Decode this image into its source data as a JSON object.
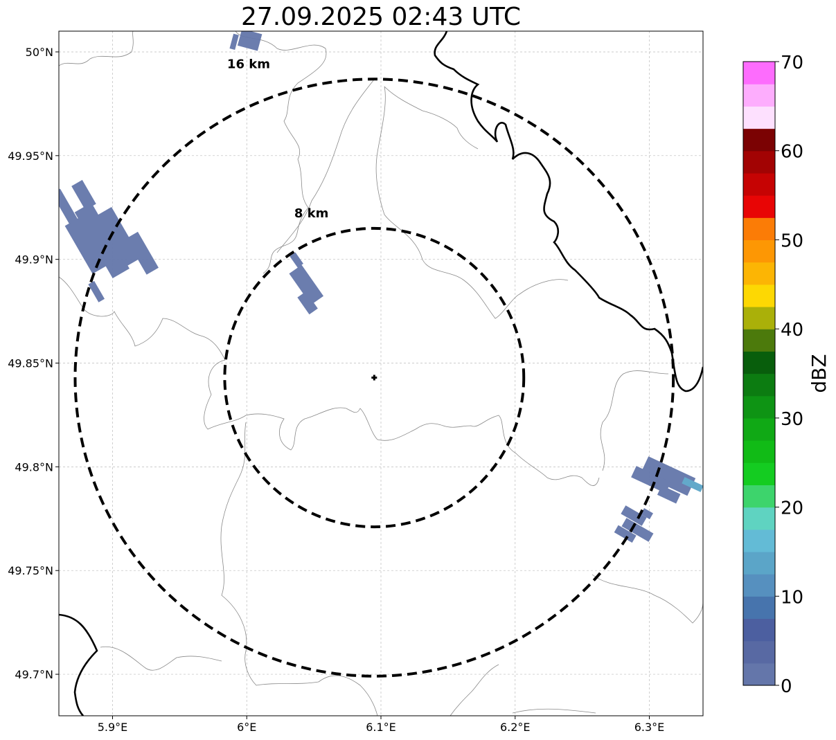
{
  "title": "27.09.2025 02:43 UTC",
  "map": {
    "lon_ticks": [
      {
        "value": 5.9,
        "label": "5.9°E"
      },
      {
        "value": 6.0,
        "label": "6°E"
      },
      {
        "value": 6.1,
        "label": "6.1°E"
      },
      {
        "value": 6.2,
        "label": "6.2°E"
      },
      {
        "value": 6.3,
        "label": "6.3°E"
      }
    ],
    "lat_ticks": [
      {
        "value": 50.0,
        "label": "50°N"
      },
      {
        "value": 49.95,
        "label": "49.95°N"
      },
      {
        "value": 49.9,
        "label": "49.9°N"
      },
      {
        "value": 49.85,
        "label": "49.85°N"
      },
      {
        "value": 49.8,
        "label": "49.8°N"
      },
      {
        "value": 49.75,
        "label": "49.75°N"
      },
      {
        "value": 49.7,
        "label": "49.7°N"
      }
    ],
    "lon_range": [
      5.86,
      6.34
    ],
    "lat_range": [
      49.68,
      50.01
    ],
    "gridlines": true,
    "radar_site": {
      "lon": 6.095,
      "lat": 49.843
    },
    "range_rings": [
      {
        "label": "8 km",
        "radius_km": 8
      },
      {
        "label": "16 km",
        "radius_km": 16
      }
    ]
  },
  "colorbar": {
    "label": "dBZ",
    "ticks": [
      "0",
      "10",
      "20",
      "30",
      "40",
      "50",
      "60",
      "70"
    ],
    "range": [
      0,
      70
    ],
    "step": 2.5,
    "colors": [
      "#6476aa",
      "#5869a3",
      "#4c5fa0",
      "#4774ad",
      "#5690bf",
      "#5ba5c8",
      "#63bbd6",
      "#5fd3c1",
      "#3dd46c",
      "#14cc21",
      "#11bb16",
      "#10a915",
      "#0e9414",
      "#0c7c11",
      "#085e0c",
      "#4c7a0c",
      "#aab009",
      "#fdd803",
      "#fcb504",
      "#fd9704",
      "#fb7c06",
      "#e80505",
      "#c60303",
      "#a20303",
      "#7b0203",
      "#fde0fe",
      "#fdadfd",
      "#fd6cfd",
      "#ef2ef0"
    ]
  }
}
